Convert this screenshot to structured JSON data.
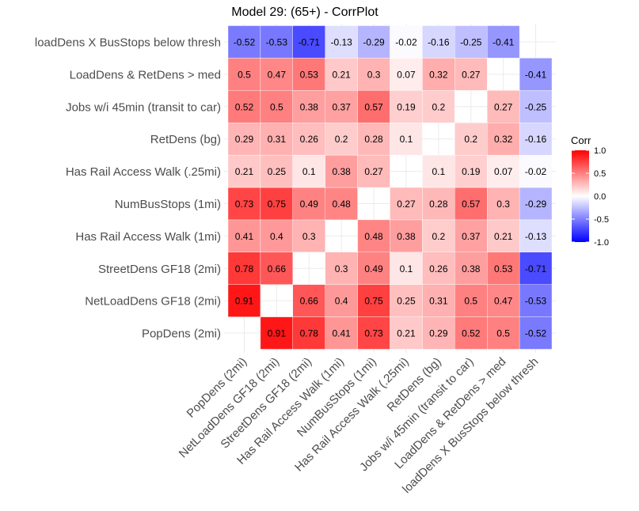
{
  "chart_data": {
    "type": "heatmap",
    "title": "Model 29: (65+) - CorrPlot",
    "variables": [
      "PopDens (2mi)",
      "NetLoadDens GF18 (2mi)",
      "StreetDens GF18 (2mi)",
      "Has Rail Access Walk (1mi)",
      "NumBusStops (1mi)",
      "Has Rail Access Walk (.25mi)",
      "RetDens (bg)",
      "Jobs w/i 45min (transit to car)",
      "LoadDens & RetDens > med",
      "loadDens X BusStops below thresh"
    ],
    "matrix": [
      [
        null,
        0.91,
        0.78,
        0.41,
        0.73,
        0.21,
        0.29,
        0.52,
        0.5,
        -0.52
      ],
      [
        0.91,
        null,
        0.66,
        0.4,
        0.75,
        0.25,
        0.31,
        0.5,
        0.47,
        -0.53
      ],
      [
        0.78,
        0.66,
        null,
        0.3,
        0.49,
        0.1,
        0.26,
        0.38,
        0.53,
        -0.71
      ],
      [
        0.41,
        0.4,
        0.3,
        null,
        0.48,
        0.38,
        0.2,
        0.37,
        0.21,
        -0.13
      ],
      [
        0.73,
        0.75,
        0.49,
        0.48,
        null,
        0.27,
        0.28,
        0.57,
        0.3,
        -0.29
      ],
      [
        0.21,
        0.25,
        0.1,
        0.38,
        0.27,
        null,
        0.1,
        0.19,
        0.07,
        -0.02
      ],
      [
        0.29,
        0.31,
        0.26,
        0.2,
        0.28,
        0.1,
        null,
        0.2,
        0.32,
        -0.16
      ],
      [
        0.52,
        0.5,
        0.38,
        0.37,
        0.57,
        0.19,
        0.2,
        null,
        0.27,
        -0.25
      ],
      [
        0.5,
        0.47,
        0.53,
        0.21,
        0.3,
        0.07,
        0.32,
        0.27,
        null,
        -0.41
      ],
      [
        -0.52,
        -0.53,
        -0.71,
        -0.13,
        -0.29,
        -0.02,
        -0.16,
        -0.25,
        -0.41,
        null
      ]
    ],
    "legend": {
      "title": "Corr",
      "position": "right",
      "ticks": [
        "1.0",
        "0.5",
        "0.0",
        "-0.5",
        "-1.0"
      ],
      "range": [
        -1,
        1
      ]
    },
    "colors": {
      "low": "#0000ff",
      "mid": "#ffffff",
      "high": "#ff0000",
      "grid": "#ebebeb"
    },
    "grid": true
  }
}
